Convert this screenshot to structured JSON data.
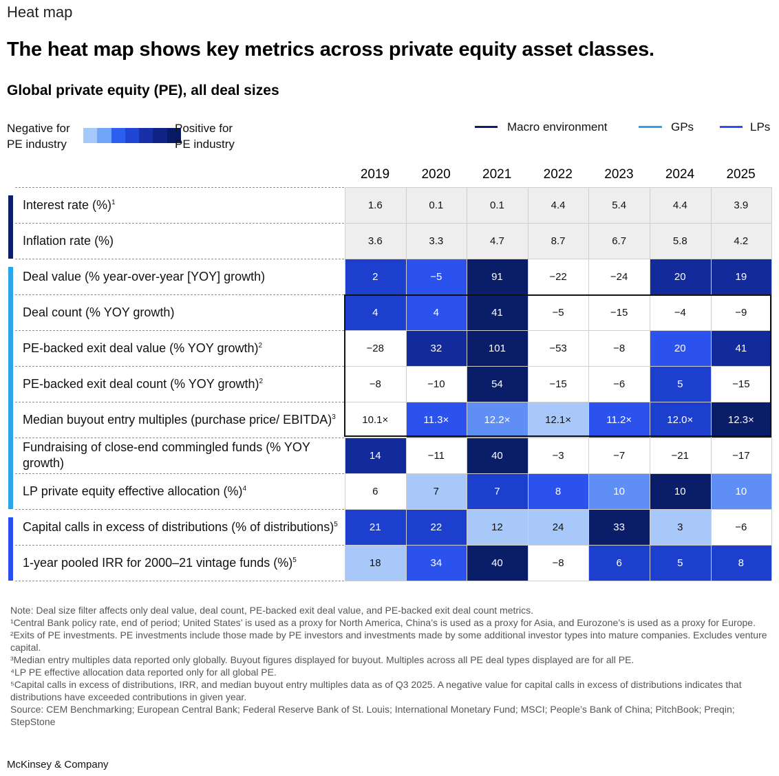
{
  "kicker": "Heat map",
  "title": "The heat map shows key metrics across private equity asset classes.",
  "subtitle": "Global private equity (PE), all deal sizes",
  "legend": {
    "negative_line1": "Negative for",
    "negative_line2": "PE industry",
    "positive_line1": "Positive for",
    "positive_line2": "PE industry",
    "scale_colors": [
      "#a7c8fb",
      "#6fa6f7",
      "#2b5ff0",
      "#1f45d4",
      "#172fa8",
      "#0e2384",
      "#081a66"
    ],
    "groups": [
      {
        "label": "Macro environment",
        "color": "#0b1f6b"
      },
      {
        "label": "GPs",
        "color": "#2aa6e8"
      },
      {
        "label": "LPs",
        "color": "#2a4ff0"
      }
    ]
  },
  "colors": {
    "gray": "#eeeeee",
    "white": "#ffffff",
    "light": "#a9c8fa",
    "mid": "#5f8ff4",
    "bright": "#2c52ee",
    "medium": "#1c3fce",
    "dark": "#132a9a",
    "darkest": "#0a1d68",
    "macro_bar": "#0b1f6b",
    "gp_bar": "#2aa6e8",
    "lp_bar": "#2a4ff0"
  },
  "chart_data": {
    "type": "heatmap",
    "title": "Global private equity (PE), all deal sizes",
    "columns": [
      "2019",
      "2020",
      "2021",
      "2022",
      "2023",
      "2024",
      "2025"
    ],
    "rows": [
      {
        "label": "Interest rate (%)",
        "sup": "1",
        "group": "Macro environment",
        "cells": [
          {
            "v": "1.6",
            "c": "gray"
          },
          {
            "v": "0.1",
            "c": "gray"
          },
          {
            "v": "0.1",
            "c": "gray"
          },
          {
            "v": "4.4",
            "c": "gray"
          },
          {
            "v": "5.4",
            "c": "gray"
          },
          {
            "v": "4.4",
            "c": "gray"
          },
          {
            "v": "3.9",
            "c": "gray"
          }
        ]
      },
      {
        "label": "Inflation rate (%)",
        "sup": "",
        "group": "Macro environment",
        "cells": [
          {
            "v": "3.6",
            "c": "gray"
          },
          {
            "v": "3.3",
            "c": "gray"
          },
          {
            "v": "4.7",
            "c": "gray"
          },
          {
            "v": "8.7",
            "c": "gray"
          },
          {
            "v": "6.7",
            "c": "gray"
          },
          {
            "v": "5.8",
            "c": "gray"
          },
          {
            "v": "4.2",
            "c": "gray"
          }
        ]
      },
      {
        "label": "Deal value (% year-over-year [YOY] growth)",
        "sup": "",
        "group": "GPs",
        "cells": [
          {
            "v": "2",
            "c": "medium"
          },
          {
            "v": "−5",
            "c": "bright"
          },
          {
            "v": "91",
            "c": "darkest"
          },
          {
            "v": "−22",
            "c": "white"
          },
          {
            "v": "−24",
            "c": "white"
          },
          {
            "v": "20",
            "c": "dark"
          },
          {
            "v": "19",
            "c": "dark"
          }
        ]
      },
      {
        "label": "Deal count (% YOY growth)",
        "sup": "",
        "group": "GPs",
        "cells": [
          {
            "v": "4",
            "c": "medium"
          },
          {
            "v": "4",
            "c": "bright"
          },
          {
            "v": "41",
            "c": "darkest"
          },
          {
            "v": "−5",
            "c": "white"
          },
          {
            "v": "−15",
            "c": "white"
          },
          {
            "v": "−4",
            "c": "white"
          },
          {
            "v": "−9",
            "c": "white"
          }
        ]
      },
      {
        "label": "PE-backed exit deal value (% YOY growth)",
        "sup": "2",
        "group": "GPs",
        "cells": [
          {
            "v": "−28",
            "c": "white"
          },
          {
            "v": "32",
            "c": "dark"
          },
          {
            "v": "101",
            "c": "darkest"
          },
          {
            "v": "−53",
            "c": "white"
          },
          {
            "v": "−8",
            "c": "white"
          },
          {
            "v": "20",
            "c": "bright"
          },
          {
            "v": "41",
            "c": "dark"
          }
        ]
      },
      {
        "label": "PE-backed exit deal count (% YOY growth)",
        "sup": "2",
        "group": "GPs",
        "cells": [
          {
            "v": "−8",
            "c": "white"
          },
          {
            "v": "−10",
            "c": "white"
          },
          {
            "v": "54",
            "c": "darkest"
          },
          {
            "v": "−15",
            "c": "white"
          },
          {
            "v": "−6",
            "c": "white"
          },
          {
            "v": "5",
            "c": "medium"
          },
          {
            "v": "−15",
            "c": "white"
          }
        ]
      },
      {
        "label": "Median buyout entry multiples (purchase price/ EBITDA)",
        "sup": "3",
        "group": "GPs",
        "cells": [
          {
            "v": "10.1×",
            "c": "white"
          },
          {
            "v": "11.3×",
            "c": "bright"
          },
          {
            "v": "12.2×",
            "c": "mid"
          },
          {
            "v": "12.1×",
            "c": "light"
          },
          {
            "v": "11.2×",
            "c": "bright"
          },
          {
            "v": "12.0×",
            "c": "medium"
          },
          {
            "v": "12.3×",
            "c": "darkest"
          }
        ]
      },
      {
        "label": "Fundraising of close-end commingled funds (% YOY growth)",
        "sup": "",
        "group": "GPs",
        "cells": [
          {
            "v": "14",
            "c": "dark"
          },
          {
            "v": "−11",
            "c": "white"
          },
          {
            "v": "40",
            "c": "darkest"
          },
          {
            "v": "−3",
            "c": "white"
          },
          {
            "v": "−7",
            "c": "white"
          },
          {
            "v": "−21",
            "c": "white"
          },
          {
            "v": "−17",
            "c": "white"
          }
        ]
      },
      {
        "label": "LP private equity effective allocation (%)",
        "sup": "4",
        "group": "GPs",
        "cells": [
          {
            "v": "6",
            "c": "white"
          },
          {
            "v": "7",
            "c": "light"
          },
          {
            "v": "7",
            "c": "medium"
          },
          {
            "v": "8",
            "c": "bright"
          },
          {
            "v": "10",
            "c": "mid"
          },
          {
            "v": "10",
            "c": "darkest"
          },
          {
            "v": "10",
            "c": "mid"
          }
        ]
      },
      {
        "label": "Capital calls in excess of distributions (% of distributions)",
        "sup": "5",
        "group": "LPs",
        "cells": [
          {
            "v": "21",
            "c": "medium"
          },
          {
            "v": "22",
            "c": "medium"
          },
          {
            "v": "12",
            "c": "light"
          },
          {
            "v": "24",
            "c": "light"
          },
          {
            "v": "33",
            "c": "darkest"
          },
          {
            "v": "3",
            "c": "light"
          },
          {
            "v": "−6",
            "c": "white"
          }
        ]
      },
      {
        "label": "1-year pooled IRR for 2000–21 vintage funds (%)",
        "sup": "5",
        "group": "LPs",
        "cells": [
          {
            "v": "18",
            "c": "light"
          },
          {
            "v": "34",
            "c": "bright"
          },
          {
            "v": "40",
            "c": "darkest"
          },
          {
            "v": "−8",
            "c": "white"
          },
          {
            "v": "6",
            "c": "medium"
          },
          {
            "v": "5",
            "c": "medium"
          },
          {
            "v": "8",
            "c": "medium"
          }
        ]
      }
    ]
  },
  "notes": [
    "Note: Deal size filter affects only deal value, deal count, PE-backed exit deal value, and PE-backed exit deal count metrics.",
    "¹Central Bank policy rate, end of period; United States’ is used as a proxy for North America, China’s is used as a proxy for Asia, and Eurozone’s is used as a proxy for Europe.",
    "²Exits of PE investments. PE investments include those made by PE investors and investments made by some additional investor types into mature companies. Excludes venture capital.",
    "³Median entry multiples data reported only globally. Buyout figures displayed for buyout. Multiples across all PE deal types displayed are for all PE.",
    "⁴LP PE effective allocation data reported only for all global PE.",
    "⁵Capital calls in excess of distributions, IRR, and median buyout entry multiples data as of Q3 2025. A negative value for capital calls in excess of distributions indicates that distributions have exceeded contributions in given year.",
    "Source: CEM Benchmarking; European Central Bank; Federal Reserve Bank of St. Louis; International Monetary Fund; MSCI; People’s Bank of China; PitchBook; Preqin; StepStone"
  ],
  "brand": "McKinsey & Company"
}
